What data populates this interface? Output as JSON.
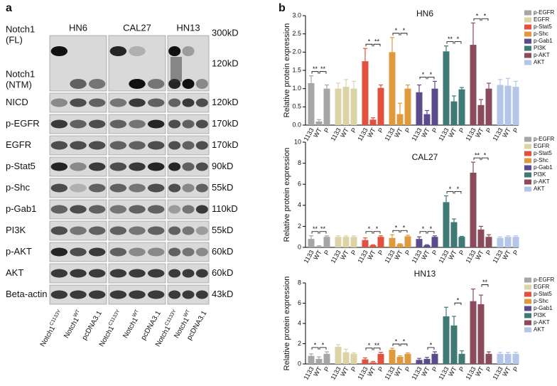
{
  "blot": {
    "panel_label": "a",
    "cell_lines": [
      "HN6",
      "CAL27",
      "HN13"
    ],
    "rows": [
      {
        "label": [
          "Notch1",
          "(FL)"
        ],
        "size": "300kD"
      },
      {
        "label": [
          "Notch1",
          "(NTM)"
        ],
        "size": "120kD"
      },
      {
        "label": [
          "NICD"
        ],
        "size": "120kD"
      },
      {
        "label": [
          "p-EGFR"
        ],
        "size": "170kD"
      },
      {
        "label": [
          "EGFR"
        ],
        "size": "170kD"
      },
      {
        "label": [
          "p-Stat5"
        ],
        "size": "90kD"
      },
      {
        "label": [
          "p-Shc"
        ],
        "size": "55kD"
      },
      {
        "label": [
          "p-Gab1"
        ],
        "size": "110kD"
      },
      {
        "label": [
          "PI3K"
        ],
        "size": "55kD"
      },
      {
        "label": [
          "p-AKT"
        ],
        "size": "60kD"
      },
      {
        "label": [
          "AKT"
        ],
        "size": "60kD"
      },
      {
        "label": [
          "Beta-actin"
        ],
        "size": "43kD"
      }
    ],
    "lanes": [
      {
        "name": "Notch1",
        "sup": "C1133Y"
      },
      {
        "name": "Notch1",
        "sup": "WT"
      },
      {
        "name": "pcDNA3.1"
      }
    ]
  },
  "panel_b_label": "b",
  "chart_data": [
    {
      "type": "bar",
      "title": "HN6",
      "y_label": "Relative protein expression",
      "categories": [
        "1133",
        "WT",
        "P"
      ],
      "ylim": [
        0,
        3
      ],
      "yticks": [
        {
          "value": 0,
          "label": "0.0"
        },
        {
          "value": 0.5,
          "label": "0.5"
        },
        {
          "value": 1,
          "label": "1.0"
        },
        {
          "value": 1.5,
          "label": "1.5"
        },
        {
          "value": 2,
          "label": "2.0"
        },
        {
          "value": 2.5,
          "label": "2.5"
        },
        {
          "value": 3,
          "label": "3.0"
        }
      ],
      "series": [
        {
          "name": "p-EGFR",
          "color": "#a6a6a6",
          "values": [
            1.15,
            0.1,
            1.0
          ],
          "errors": [
            0.2,
            0.05,
            0.1
          ],
          "stars": [
            "**",
            "**"
          ]
        },
        {
          "name": "EGFR",
          "color": "#dcd4a6",
          "values": [
            1.0,
            1.05,
            1.0
          ],
          "errors": [
            0.15,
            0.2,
            0.2
          ],
          "stars": [
            null,
            null
          ]
        },
        {
          "name": "p-Stat5",
          "color": "#e2513d",
          "values": [
            1.75,
            0.15,
            1.02
          ],
          "errors": [
            0.35,
            0.05,
            0.08
          ],
          "stars": [
            "*",
            "**"
          ]
        },
        {
          "name": "p-Shc",
          "color": "#e09a3e",
          "values": [
            2.0,
            0.3,
            1.0
          ],
          "errors": [
            0.4,
            0.3,
            0.1
          ],
          "stars": [
            "*",
            "*"
          ]
        },
        {
          "name": "p-Gab1",
          "color": "#594b8c",
          "values": [
            0.9,
            0.3,
            1.0
          ],
          "errors": [
            0.2,
            0.1,
            0.2
          ],
          "stars": [
            "*",
            "*"
          ]
        },
        {
          "name": "PI3K",
          "color": "#3f7a77",
          "values": [
            2.02,
            0.65,
            0.98
          ],
          "errors": [
            0.15,
            0.15,
            0.05
          ],
          "stars": [
            "**",
            "*"
          ]
        },
        {
          "name": "p-AKT",
          "color": "#8c4b5c",
          "values": [
            2.2,
            0.55,
            1.0
          ],
          "errors": [
            0.6,
            0.15,
            0.15
          ],
          "stars": [
            "*",
            "*"
          ]
        },
        {
          "name": "AKT",
          "color": "#b3c6e8",
          "values": [
            1.1,
            1.08,
            1.05
          ],
          "errors": [
            0.15,
            0.2,
            0.15
          ],
          "stars": [
            null,
            null
          ]
        }
      ]
    },
    {
      "type": "bar",
      "title": "CAL27",
      "y_label": "Relative protein expression",
      "categories": [
        "1133",
        "WT",
        "P"
      ],
      "ylim": [
        0,
        10
      ],
      "yticks": [
        0,
        2,
        4,
        6,
        8,
        10
      ],
      "series": [
        {
          "name": "p-EGFR",
          "color": "#a6a6a6",
          "values": [
            0.8,
            0.1,
            1.0
          ],
          "errors": [
            0.3,
            0.05,
            0.1
          ],
          "stars": [
            "**",
            "**"
          ]
        },
        {
          "name": "EGFR",
          "color": "#dcd4a6",
          "values": [
            1.0,
            1.0,
            1.0
          ],
          "errors": [
            0.1,
            0.1,
            0.1
          ],
          "stars": [
            null,
            null
          ]
        },
        {
          "name": "p-Stat5",
          "color": "#e2513d",
          "values": [
            0.7,
            0.2,
            1.0
          ],
          "errors": [
            0.2,
            0.05,
            0.1
          ],
          "stars": [
            "*",
            "*"
          ]
        },
        {
          "name": "p-Shc",
          "color": "#e09a3e",
          "values": [
            0.9,
            0.3,
            1.05
          ],
          "errors": [
            0.3,
            0.05,
            0.1
          ],
          "stars": [
            "*",
            "*"
          ]
        },
        {
          "name": "p-Gab1",
          "color": "#594b8c",
          "values": [
            0.8,
            0.2,
            1.0
          ],
          "errors": [
            0.2,
            0.05,
            0.1
          ],
          "stars": [
            "*",
            "*"
          ]
        },
        {
          "name": "PI3K",
          "color": "#3f7a77",
          "values": [
            4.3,
            2.4,
            1.0
          ],
          "errors": [
            0.6,
            0.3,
            0.05
          ],
          "stars": [
            "*",
            "*"
          ]
        },
        {
          "name": "p-AKT",
          "color": "#8c4b5c",
          "values": [
            7.1,
            1.7,
            1.0
          ],
          "errors": [
            1.0,
            0.3,
            0.2
          ],
          "stars": [
            "**",
            "*"
          ]
        },
        {
          "name": "AKT",
          "color": "#b3c6e8",
          "values": [
            0.9,
            1.0,
            1.0
          ],
          "errors": [
            0.1,
            0.1,
            0.1
          ],
          "stars": [
            null,
            null
          ]
        }
      ]
    },
    {
      "type": "bar",
      "title": "HN13",
      "y_label": "Relative protein expression",
      "categories": [
        "1133",
        "WT",
        "P"
      ],
      "ylim": [
        0,
        8
      ],
      "yticks": [
        0,
        2,
        4,
        6,
        8
      ],
      "series": [
        {
          "name": "p-EGFR",
          "color": "#a6a6a6",
          "values": [
            0.8,
            0.5,
            1.0
          ],
          "errors": [
            0.2,
            0.2,
            0.2
          ],
          "stars": [
            "*",
            "*"
          ]
        },
        {
          "name": "EGFR",
          "color": "#dcd4a6",
          "values": [
            1.7,
            1.15,
            1.0
          ],
          "errors": [
            0.2,
            0.3,
            0.1
          ],
          "stars": [
            null,
            null
          ]
        },
        {
          "name": "p-Stat5",
          "color": "#e2513d",
          "values": [
            0.45,
            0.15,
            1.0
          ],
          "errors": [
            0.15,
            0.1,
            0.15
          ],
          "stars": [
            "*",
            "**"
          ]
        },
        {
          "name": "p-Shc",
          "color": "#e09a3e",
          "values": [
            1.4,
            0.7,
            1.0
          ],
          "errors": [
            0.15,
            0.1,
            0.1
          ],
          "stars": [
            "*",
            "*"
          ]
        },
        {
          "name": "p-Gab1",
          "color": "#594b8c",
          "values": [
            0.4,
            0.5,
            1.0
          ],
          "errors": [
            0.15,
            0.15,
            0.2
          ],
          "stars": [
            null,
            "*"
          ]
        },
        {
          "name": "PI3K",
          "color": "#3f7a77",
          "values": [
            4.7,
            3.8,
            1.0
          ],
          "errors": [
            0.9,
            0.9,
            0.3
          ],
          "stars": [
            null,
            "*"
          ]
        },
        {
          "name": "p-AKT",
          "color": "#8c4b5c",
          "values": [
            6.2,
            5.9,
            1.0
          ],
          "errors": [
            1.2,
            0.9,
            0.2
          ],
          "stars": [
            null,
            "**"
          ]
        },
        {
          "name": "AKT",
          "color": "#b3c6e8",
          "values": [
            1.0,
            1.0,
            1.0
          ],
          "errors": [
            0.15,
            0.15,
            0.15
          ],
          "stars": [
            null,
            null
          ]
        }
      ]
    }
  ]
}
